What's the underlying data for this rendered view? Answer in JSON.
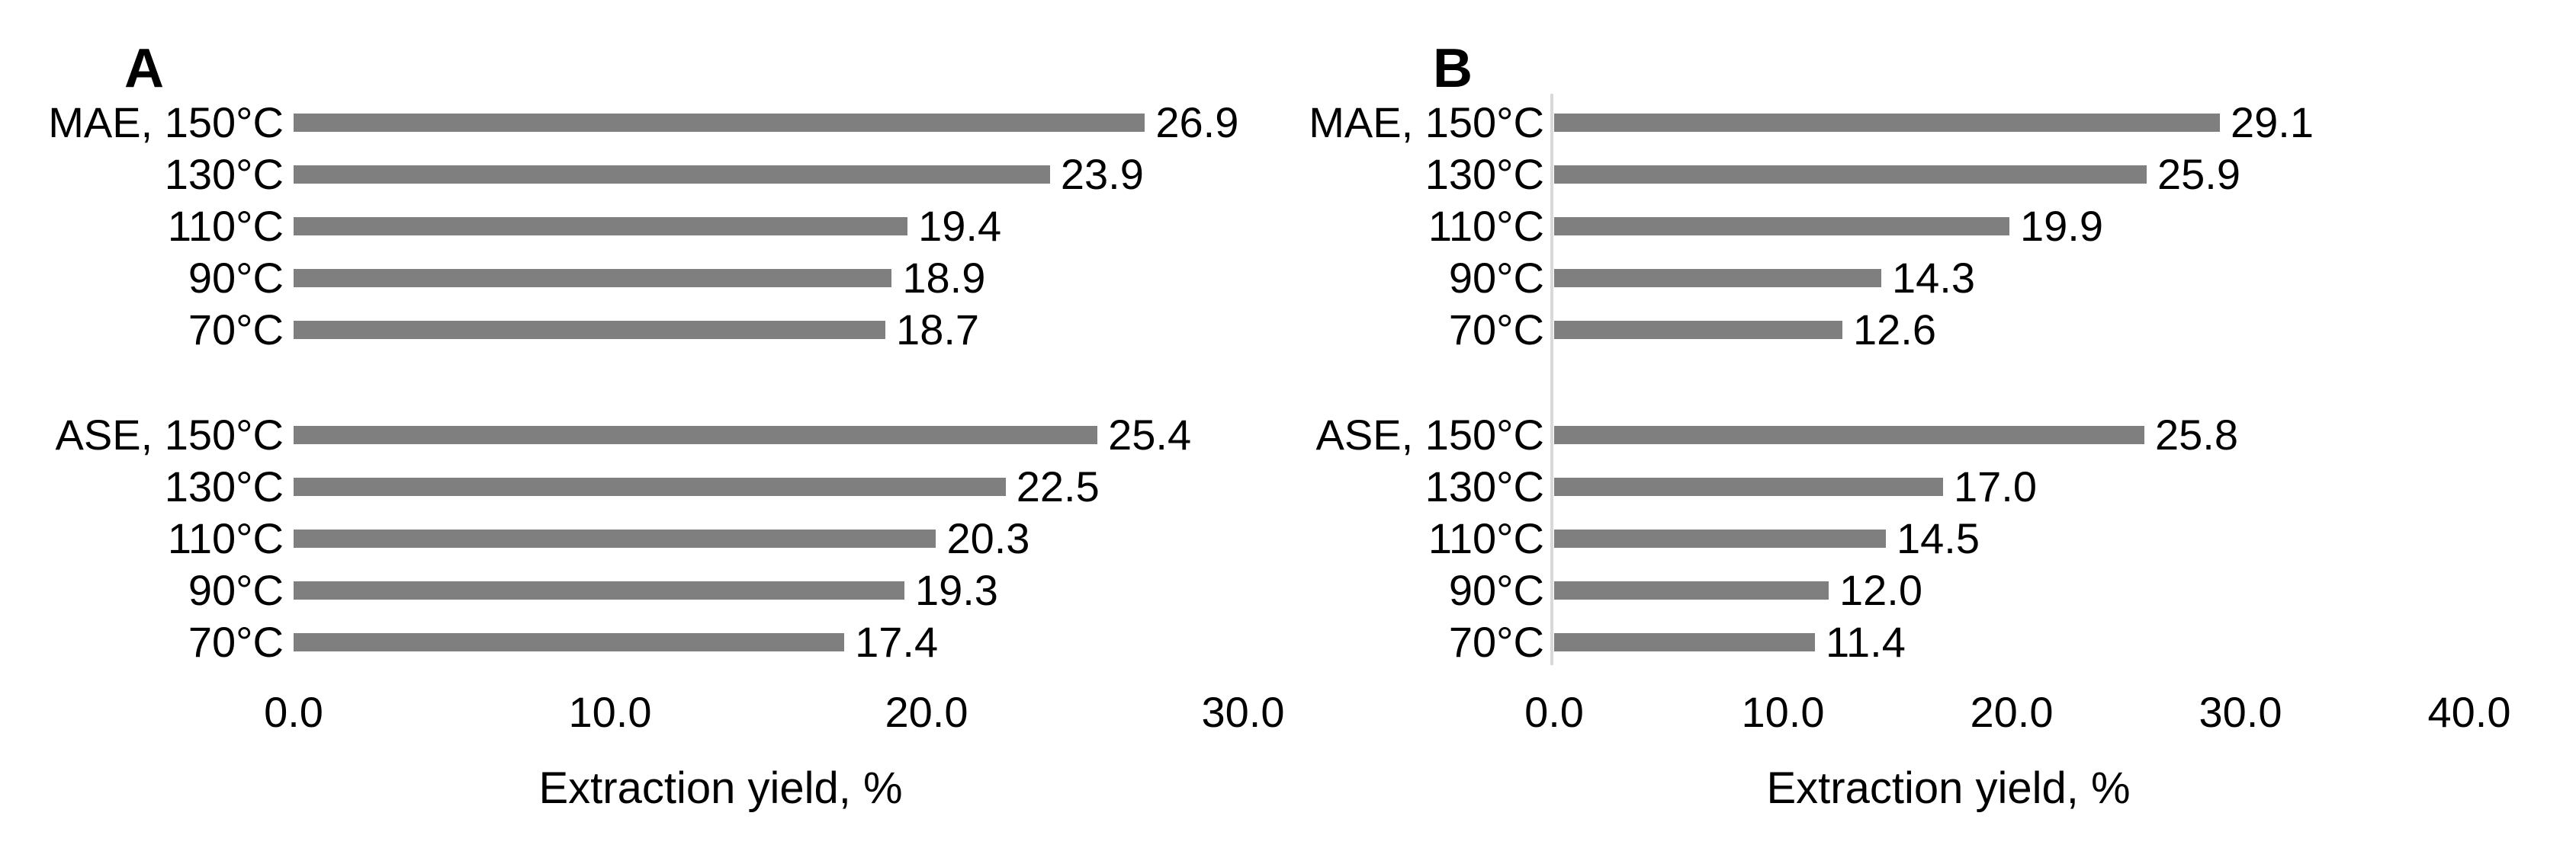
{
  "figure": {
    "background": "#ffffff",
    "text_color": "#000000",
    "panel_letters": [
      "A",
      "B"
    ]
  },
  "chart_data": [
    {
      "type": "bar",
      "orientation": "horizontal",
      "title": "A",
      "xlabel": "Extraction yield, %",
      "xlim": [
        0,
        30
      ],
      "xticks": [
        0,
        10,
        20,
        30
      ],
      "xtick_labels": [
        "0.0",
        "10.0",
        "20.0",
        "30.0"
      ],
      "grid": false,
      "legend": false,
      "bar_color": "#7f7f7f",
      "axis_line_color": null,
      "categories": [
        "MAE, 150°C",
        "130°C",
        "110°C",
        "90°C",
        "70°C",
        "ASE, 150°C",
        "130°C",
        "110°C",
        "90°C",
        "70°C"
      ],
      "group_split_index": 5,
      "values": [
        26.9,
        23.9,
        19.4,
        18.9,
        18.7,
        25.4,
        22.5,
        20.3,
        19.3,
        17.4
      ],
      "value_labels": [
        "26.9",
        "23.9",
        "19.4",
        "18.9",
        "18.7",
        "25.4",
        "22.5",
        "20.3",
        "19.3",
        "17.4"
      ]
    },
    {
      "type": "bar",
      "orientation": "horizontal",
      "title": "B",
      "xlabel": "Extraction yield, %",
      "xlim": [
        0,
        40
      ],
      "xticks": [
        0,
        10,
        20,
        30,
        40
      ],
      "xtick_labels": [
        "0.0",
        "10.0",
        "20.0",
        "30.0",
        "40.0"
      ],
      "grid": false,
      "legend": false,
      "bar_color": "#7f7f7f",
      "axis_line_color": "#d9d9d9",
      "categories": [
        "MAE, 150°C",
        "130°C",
        "110°C",
        "90°C",
        "70°C",
        "ASE, 150°C",
        "130°C",
        "110°C",
        "90°C",
        "70°C"
      ],
      "group_split_index": 5,
      "values": [
        29.1,
        25.9,
        19.9,
        14.3,
        12.6,
        25.8,
        17.0,
        14.5,
        12.0,
        11.4
      ],
      "value_labels": [
        "29.1",
        "25.9",
        "19.9",
        "14.3",
        "12.6",
        "25.8",
        "17.0",
        "14.5",
        "12.0",
        "11.4"
      ]
    }
  ]
}
